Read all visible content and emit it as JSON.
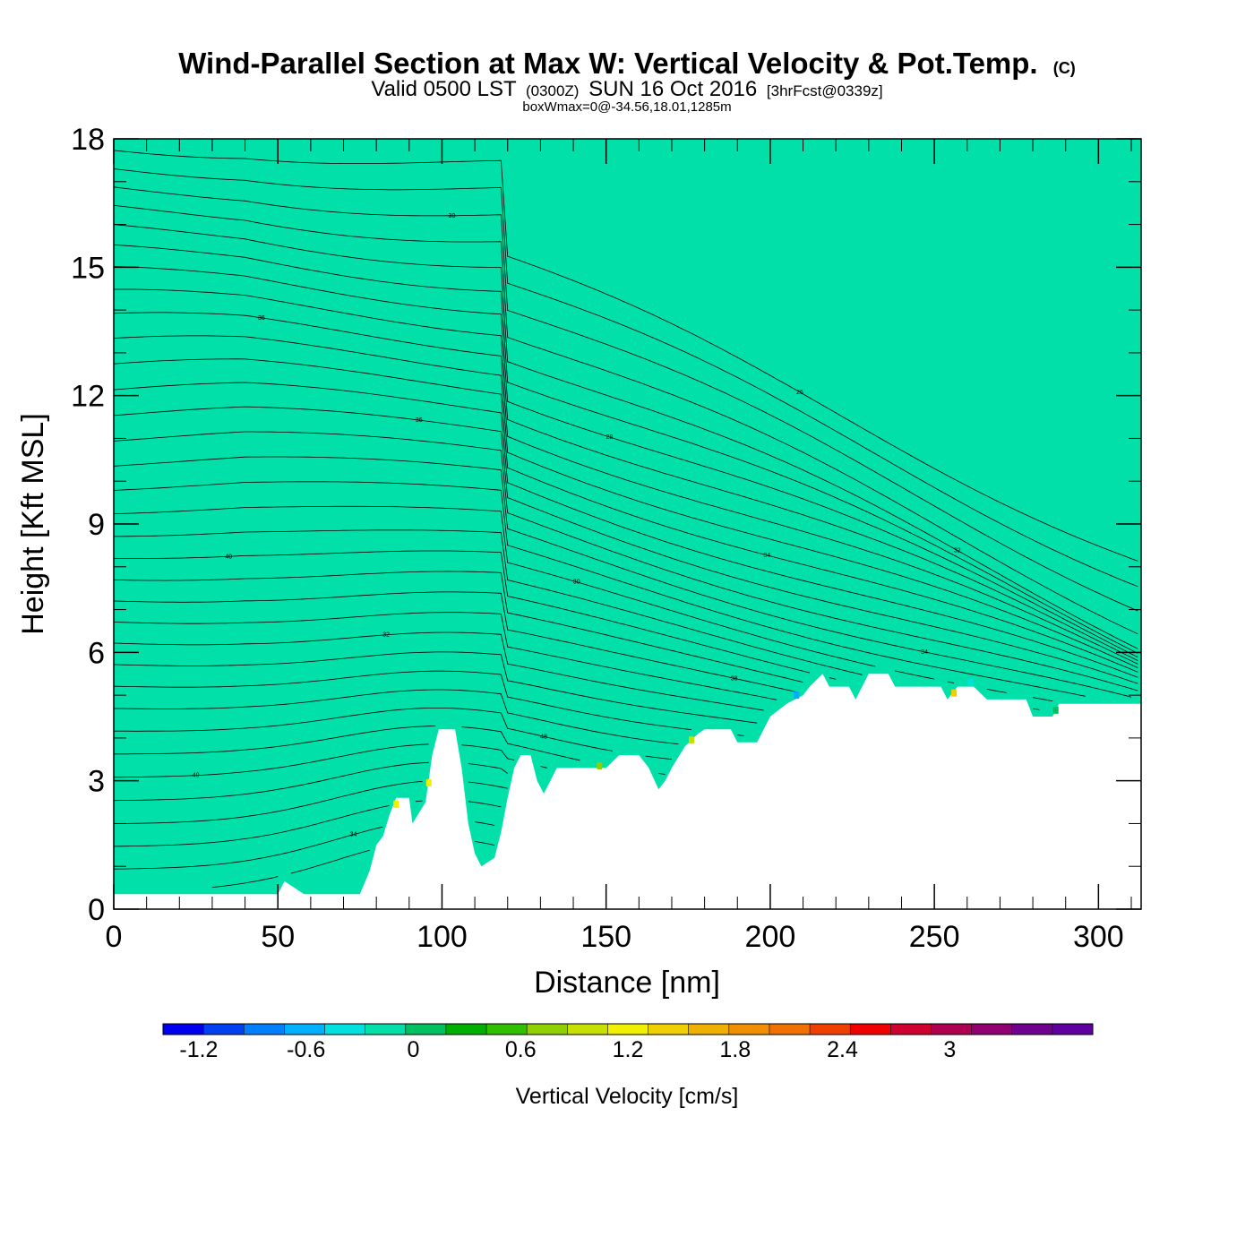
{
  "title": {
    "main": "Wind-Parallel Section at Max W: Vertical Velocity & Pot.Temp.",
    "copyright": "(C)",
    "valid_prefix": "Valid 0500 LST",
    "valid_utc": "(0300Z)",
    "valid_date": "SUN 16 Oct 2016",
    "forecast": "[3hrFcst@0339z]",
    "box": "boxWmax=0@-34.56,18.01,1285m"
  },
  "chart_data": {
    "type": "heatmap",
    "xlabel": "Distance [nm]",
    "ylabel": "Height [Kft MSL]",
    "xlim": [
      0,
      313
    ],
    "ylim": [
      0,
      18
    ],
    "x_ticks": [
      "0",
      "50",
      "100",
      "150",
      "200",
      "250",
      "300"
    ],
    "y_ticks": [
      "0",
      "3",
      "6",
      "9",
      "12",
      "15",
      "18"
    ],
    "fill_value_cm_s": 0.0,
    "fill_color": "#00e0a8",
    "terrain_kft": [
      [
        0,
        0.35
      ],
      [
        50,
        0.35
      ],
      [
        52,
        0.65
      ],
      [
        58,
        0.35
      ],
      [
        75,
        0.35
      ],
      [
        78,
        0.9
      ],
      [
        80,
        1.5
      ],
      [
        82,
        1.7
      ],
      [
        84,
        2.2
      ],
      [
        86,
        2.6
      ],
      [
        90,
        2.6
      ],
      [
        91,
        2.0
      ],
      [
        95,
        2.5
      ],
      [
        97,
        3.6
      ],
      [
        99,
        4.2
      ],
      [
        104,
        4.2
      ],
      [
        106,
        3.3
      ],
      [
        108,
        2.0
      ],
      [
        110,
        1.3
      ],
      [
        112,
        1.0
      ],
      [
        116,
        1.2
      ],
      [
        118,
        1.8
      ],
      [
        120,
        2.6
      ],
      [
        122,
        3.3
      ],
      [
        124,
        3.6
      ],
      [
        127,
        3.6
      ],
      [
        129,
        3.0
      ],
      [
        131,
        2.7
      ],
      [
        133,
        3.0
      ],
      [
        135,
        3.3
      ],
      [
        150,
        3.3
      ],
      [
        154,
        3.6
      ],
      [
        160,
        3.6
      ],
      [
        163,
        3.3
      ],
      [
        166,
        2.8
      ],
      [
        168,
        3.0
      ],
      [
        170,
        3.3
      ],
      [
        174,
        3.8
      ],
      [
        178,
        4.1
      ],
      [
        180,
        4.2
      ],
      [
        188,
        4.2
      ],
      [
        190,
        3.9
      ],
      [
        196,
        3.9
      ],
      [
        198,
        4.2
      ],
      [
        200,
        4.5
      ],
      [
        205,
        4.8
      ],
      [
        210,
        5.0
      ],
      [
        212,
        5.2
      ],
      [
        216,
        5.5
      ],
      [
        218,
        5.2
      ],
      [
        224,
        5.2
      ],
      [
        226,
        4.9
      ],
      [
        228,
        5.2
      ],
      [
        230,
        5.5
      ],
      [
        236,
        5.5
      ],
      [
        238,
        5.2
      ],
      [
        252,
        5.2
      ],
      [
        254,
        4.9
      ],
      [
        257,
        5.2
      ],
      [
        262,
        5.2
      ],
      [
        266,
        4.9
      ],
      [
        278,
        4.9
      ],
      [
        280,
        4.5
      ],
      [
        286,
        4.5
      ],
      [
        288,
        4.8
      ],
      [
        313,
        4.8
      ]
    ],
    "contour_labels": [
      "34",
      "40",
      "48",
      "32",
      "38",
      "40",
      "30",
      "34",
      "36",
      "34",
      "36",
      "28",
      "32",
      "30",
      "26",
      "34",
      "24",
      "32",
      "26",
      "30",
      "24",
      "26",
      "28",
      "22",
      "24",
      "20",
      "22",
      "18",
      "16"
    ],
    "colorbar": {
      "label": "Vertical Velocity [cm/s]",
      "tick_labels": [
        "-1.2",
        "-0.6",
        "0",
        "0.6",
        "1.2",
        "1.8",
        "2.4",
        "3"
      ],
      "colors": [
        "#0000f0",
        "#0040f0",
        "#0080ff",
        "#00b0ff",
        "#00e0e0",
        "#00e0a8",
        "#00c060",
        "#00b000",
        "#30c000",
        "#90d000",
        "#c8e000",
        "#f0f000",
        "#f0d000",
        "#f0b000",
        "#f09000",
        "#f07000",
        "#f04000",
        "#f00000",
        "#d00030",
        "#b00050",
        "#900070",
        "#700090",
        "#6000a0"
      ]
    }
  }
}
